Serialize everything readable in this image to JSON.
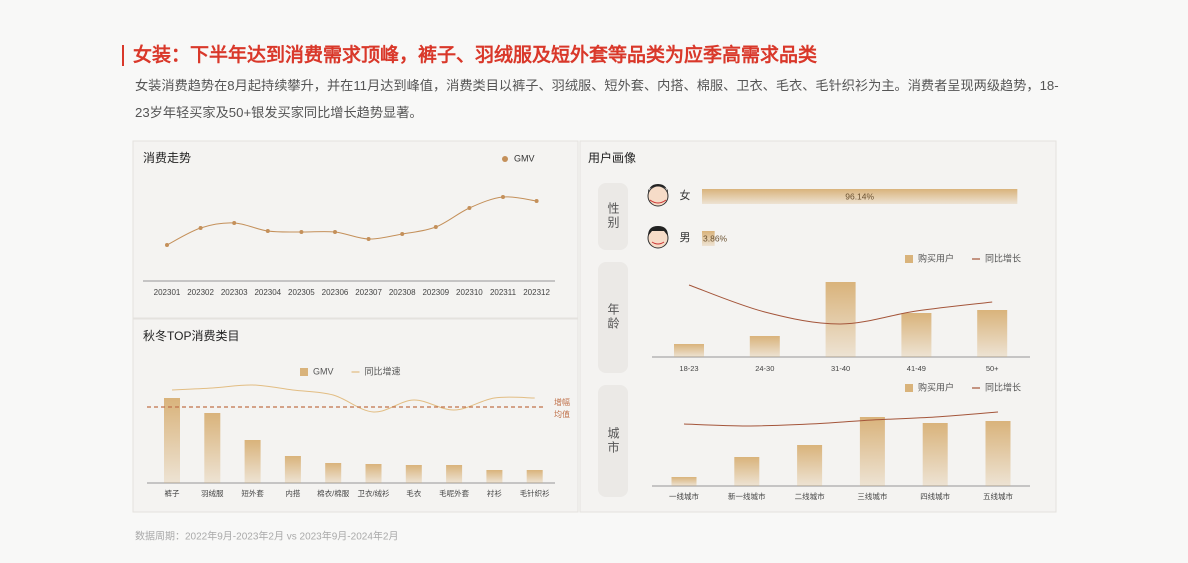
{
  "header": {
    "title": "女装：下半年达到消费需求顶峰，裤子、羽绒服及短外套等品类为应季高需求品类",
    "description": "女装消费趋势在8月起持续攀升，并在11月达到峰值，消费类目以裤子、羽绒服、短外套、内搭、棉服、卫衣、毛衣、毛针织衫为主。消费者呈现两级趋势，18-23岁年轻买家及50+银发买家同比增长趋势显著。"
  },
  "chart_data": [
    {
      "type": "line",
      "title": "消费走势",
      "categories": [
        "202301",
        "202302",
        "202303",
        "202304",
        "202305",
        "202306",
        "202307",
        "202308",
        "202309",
        "202310",
        "202311",
        "202312"
      ],
      "series": [
        {
          "name": "GMV",
          "color": "#c4905a",
          "values": [
            36,
            53,
            58,
            50,
            49,
            49,
            42,
            47,
            54,
            73,
            84,
            80
          ]
        }
      ]
    },
    {
      "type": "combo",
      "title": "秋冬TOP消费类目",
      "categories": [
        "裤子",
        "羽绒服",
        "短外套",
        "内搭",
        "棉衣/棉服",
        "卫衣/绒衫",
        "毛衣",
        "毛呢外套",
        "衬衫",
        "毛针织衫"
      ],
      "series": [
        {
          "name": "GMV",
          "type": "bar",
          "color": "#d9b37b",
          "values": [
            85,
            70,
            43,
            27,
            20,
            19,
            18,
            18,
            13,
            13
          ]
        },
        {
          "name": "同比增速",
          "type": "line",
          "color": "#e2bd83",
          "values": [
            30,
            32,
            35,
            30,
            25,
            8,
            20,
            10,
            22,
            22
          ]
        }
      ],
      "reference_line": {
        "label": [
          "增幅",
          "均值"
        ],
        "value": 13,
        "color": "#c0714a"
      }
    },
    {
      "type": "bar",
      "horizontal": true,
      "title": "用户画像",
      "group": "性别",
      "categories": [
        "女",
        "男"
      ],
      "values": [
        96.14,
        3.86
      ],
      "value_labels": [
        "96.14%",
        "3.86%"
      ],
      "color": "#d9b37b"
    },
    {
      "type": "combo",
      "group": "年龄",
      "categories": [
        "18-23",
        "24-30",
        "31-40",
        "41-49",
        "50+"
      ],
      "series": [
        {
          "name": "购买用户",
          "type": "bar",
          "color": "#d9b37b",
          "values": [
            13,
            21,
            75,
            44,
            47
          ]
        },
        {
          "name": "同比增长",
          "type": "line",
          "color": "#a4553a",
          "values": [
            72,
            45,
            33,
            46,
            55
          ]
        }
      ]
    },
    {
      "type": "combo",
      "group": "城市",
      "categories": [
        "一线城市",
        "新一线城市",
        "二线城市",
        "三线城市",
        "四线城市",
        "五线城市"
      ],
      "series": [
        {
          "name": "购买用户",
          "type": "bar",
          "color": "#d9b37b",
          "values": [
            9,
            29,
            41,
            69,
            63,
            65
          ]
        },
        {
          "name": "同比增长",
          "type": "line",
          "color": "#a4553a",
          "values": [
            62,
            60,
            62,
            66,
            69,
            74
          ]
        }
      ]
    }
  ],
  "footnote": "数据周期：2022年9月-2023年2月 vs 2023年9月-2024年2月"
}
